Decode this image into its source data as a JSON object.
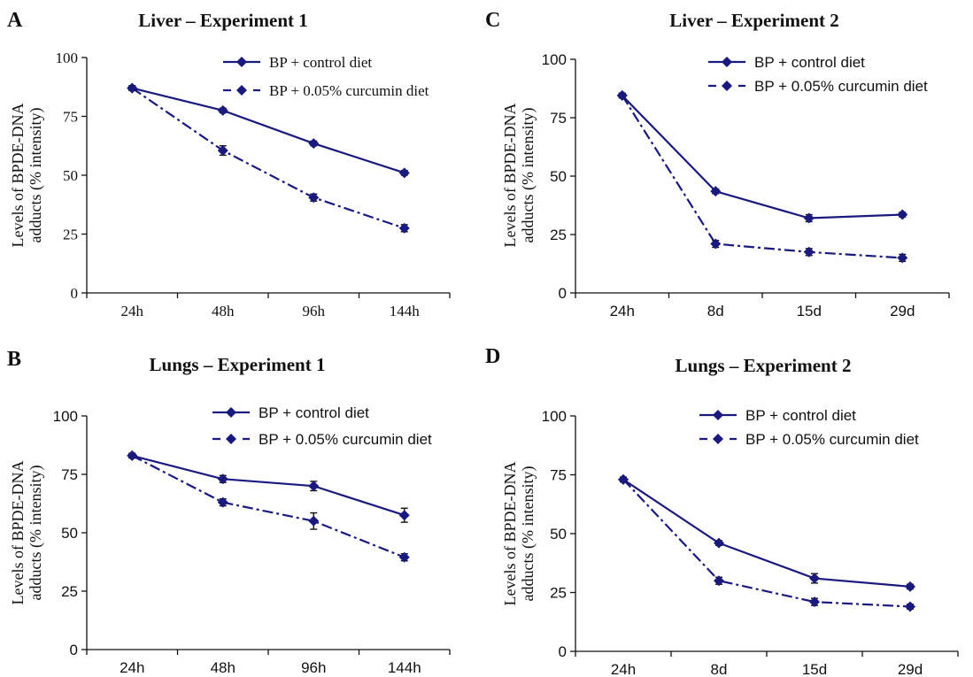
{
  "chart_data": [
    {
      "panel": "A",
      "type": "line",
      "title": "Liver – Experiment 1",
      "ylabel_line1": "Levels of BPDE-DNA",
      "ylabel_line2": "adducts (% intensity)",
      "categories": [
        "24h",
        "48h",
        "96h",
        "144h"
      ],
      "ylim": [
        0,
        100
      ],
      "yticks": [
        "0",
        "25",
        "50",
        "75",
        "100"
      ],
      "tick_font": "serif",
      "legend_position": "top-right",
      "series": [
        {
          "name": "BP + control diet",
          "values": [
            87,
            77.5,
            63.5,
            51
          ],
          "errors": [
            1,
            1,
            1,
            1
          ],
          "line_style": "solid"
        },
        {
          "name": "BP + 0.05% curcumin diet",
          "values": [
            87,
            60.5,
            40.5,
            27.5
          ],
          "errors": [
            1,
            2,
            1.5,
            1.5
          ],
          "line_style": "dash-dot"
        }
      ]
    },
    {
      "panel": "B",
      "type": "line",
      "title": "Lungs – Experiment 1",
      "ylabel_line1": "Levels of BPDE-DNA",
      "ylabel_line2": "adducts (% intensity)",
      "categories": [
        "24h",
        "48h",
        "96h",
        "144h"
      ],
      "ylim": [
        0,
        100
      ],
      "yticks": [
        "0",
        "25",
        "50",
        "75",
        "100"
      ],
      "tick_font": "sans",
      "legend_position": "top-right",
      "series": [
        {
          "name": "BP + control diet",
          "values": [
            83,
            73,
            70,
            57.5
          ],
          "errors": [
            1,
            1.5,
            2,
            3
          ],
          "line_style": "solid"
        },
        {
          "name": "BP + 0.05% curcumin diet",
          "values": [
            83,
            63,
            55,
            39.5
          ],
          "errors": [
            1,
            1.5,
            3.5,
            1.5
          ],
          "line_style": "dash-dot"
        }
      ]
    },
    {
      "panel": "C",
      "type": "line",
      "title": "Liver – Experiment 2",
      "ylabel_line1": "Levels of BPDE-DNA",
      "ylabel_line2": "adducts (% intensity)",
      "categories": [
        "24h",
        "8d",
        "15d",
        "29d"
      ],
      "ylim": [
        0,
        100
      ],
      "yticks": [
        "0",
        "25",
        "50",
        "75",
        "100"
      ],
      "tick_font": "sans",
      "legend_position": "top-right",
      "series": [
        {
          "name": "BP + control diet",
          "values": [
            84.5,
            43.5,
            32,
            33.5
          ],
          "errors": [
            1,
            1,
            1.5,
            1
          ],
          "line_style": "solid"
        },
        {
          "name": "BP + 0.05% curcumin diet",
          "values": [
            84.5,
            21,
            17.5,
            15
          ],
          "errors": [
            1,
            1.5,
            1.5,
            1.5
          ],
          "line_style": "dash-dot"
        }
      ]
    },
    {
      "panel": "D",
      "type": "line",
      "title": "Lungs – Experiment 2",
      "ylabel_line1": "Levels of BPDE-DNA",
      "ylabel_line2": "adducts (% intensity)",
      "categories": [
        "24h",
        "8d",
        "15d",
        "29d"
      ],
      "ylim": [
        0,
        100
      ],
      "yticks": [
        "0",
        "25",
        "50",
        "75",
        "100"
      ],
      "tick_font": "sans",
      "legend_position": "top-right",
      "series": [
        {
          "name": "BP + control diet",
          "values": [
            73,
            46,
            31,
            27.5
          ],
          "errors": [
            1,
            1,
            2,
            1
          ],
          "line_style": "solid"
        },
        {
          "name": "BP + 0.05% curcumin diet",
          "values": [
            73,
            30,
            21,
            19
          ],
          "errors": [
            1,
            1.5,
            1.5,
            1
          ],
          "line_style": "dash-dot"
        }
      ]
    }
  ],
  "colors": {
    "series": "#1a1a7e",
    "axis": "#111111"
  }
}
